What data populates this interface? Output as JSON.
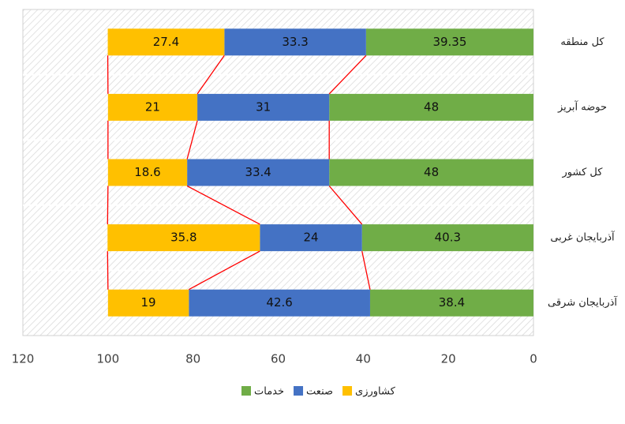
{
  "chart_data": {
    "type": "stacked_barh",
    "categories": [
      "کل منطقه",
      "حوضه آبریز",
      "کل کشور",
      "آذربایجان غربی",
      "آذربایجان شرقی"
    ],
    "series": [
      {
        "name": "خدمات",
        "color": "#70ad47",
        "values": [
          39.35,
          48,
          48,
          40.3,
          38.4
        ]
      },
      {
        "name": "صنعت",
        "color": "#4472c4",
        "values": [
          33.3,
          31,
          33.4,
          24,
          42.6
        ]
      },
      {
        "name": "کشاورزی",
        "color": "#ffc000",
        "values": [
          27.4,
          21,
          18.6,
          35.8,
          19
        ]
      }
    ],
    "xlim": [
      0,
      120
    ],
    "xticks": [
      0,
      20,
      40,
      60,
      80,
      100,
      120
    ],
    "x_reversed": true,
    "series_lines": true,
    "series_line_color": "#ff0000"
  }
}
